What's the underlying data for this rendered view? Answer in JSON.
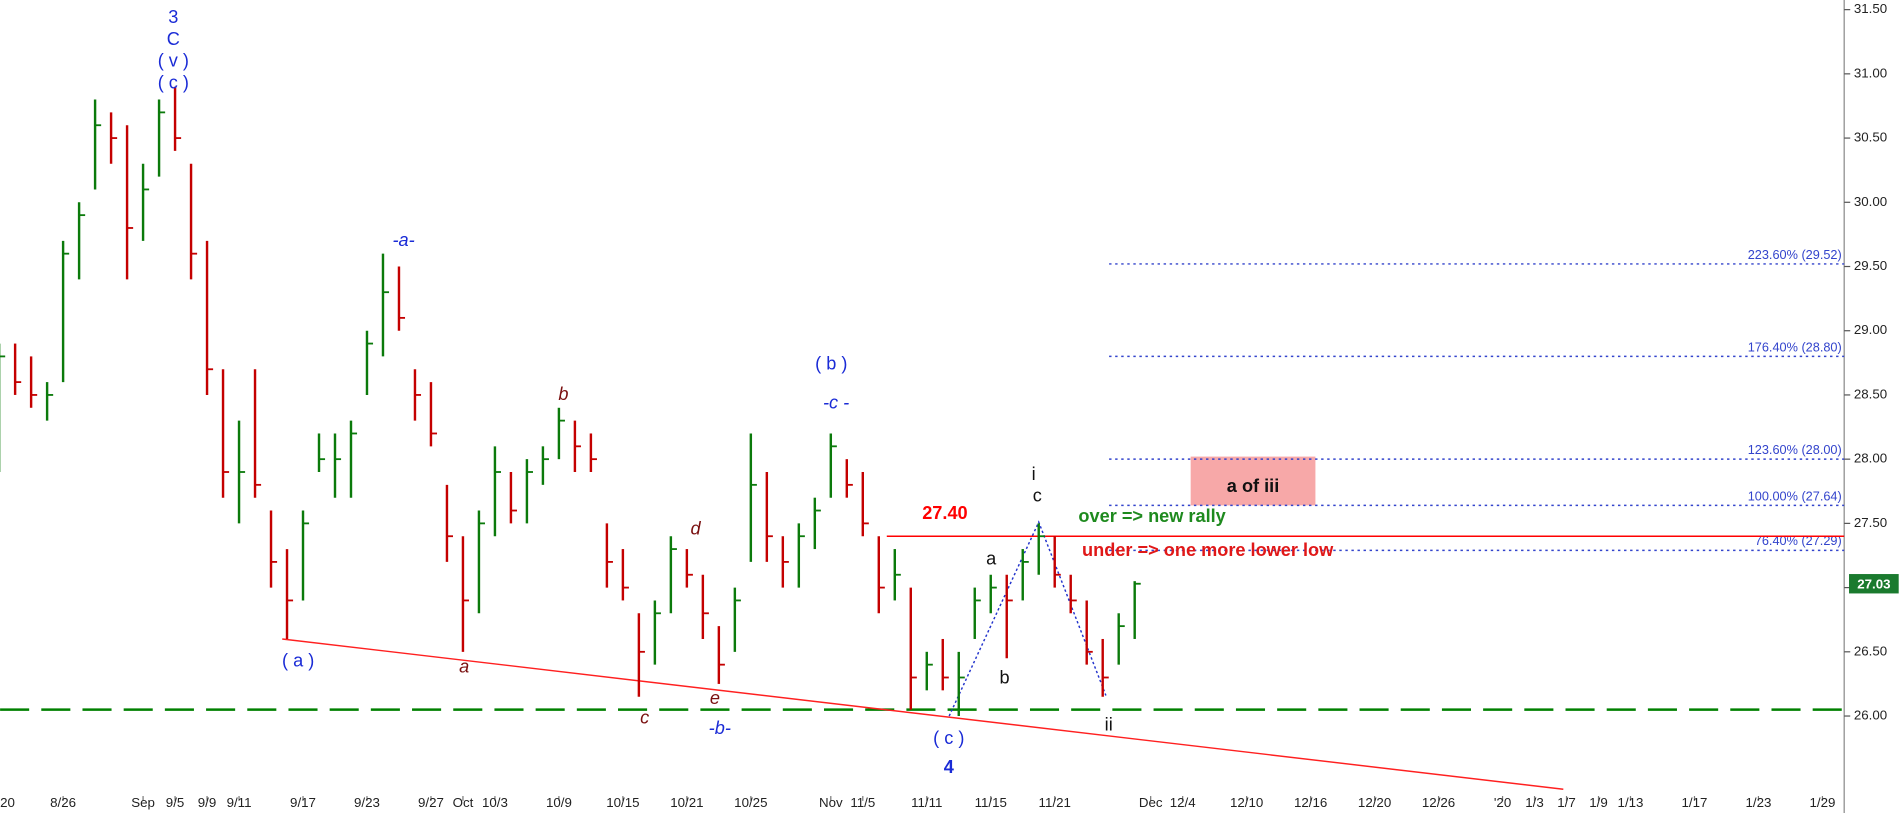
{
  "chart_data": {
    "type": "ohlc",
    "x": [
      0,
      1,
      2,
      3,
      4,
      5,
      6,
      7,
      8,
      9,
      10,
      11,
      12,
      13,
      14,
      15,
      16,
      17,
      18,
      19,
      20,
      21,
      22,
      23,
      24,
      25,
      26,
      27,
      28,
      29,
      30,
      31,
      32,
      33,
      34,
      35,
      36,
      37,
      38,
      39,
      40,
      41,
      42,
      43,
      44,
      45,
      46,
      47,
      48,
      49,
      50,
      51,
      52,
      53,
      54,
      55,
      56,
      57,
      58,
      59,
      60,
      61,
      62,
      63,
      64,
      65,
      66,
      67,
      68,
      69,
      70,
      71
    ],
    "high": [
      28.9,
      28.9,
      28.8,
      28.6,
      29.7,
      30.0,
      30.8,
      30.7,
      30.6,
      30.3,
      30.8,
      30.9,
      30.3,
      29.7,
      28.7,
      28.3,
      28.7,
      27.6,
      27.3,
      27.6,
      28.2,
      28.2,
      28.3,
      29.0,
      29.6,
      29.5,
      28.7,
      28.6,
      27.8,
      27.4,
      27.6,
      28.1,
      27.9,
      28.0,
      28.1,
      28.4,
      28.3,
      28.2,
      27.5,
      27.3,
      26.8,
      26.9,
      27.4,
      27.3,
      27.1,
      26.7,
      27.0,
      28.2,
      27.9,
      27.4,
      27.5,
      27.7,
      28.2,
      28.0,
      27.9,
      27.4,
      27.3,
      27.0,
      26.5,
      26.6,
      26.5,
      27.0,
      27.1,
      27.1,
      27.3,
      27.5,
      27.4,
      27.1,
      26.9,
      26.6,
      26.8,
      27.05
    ],
    "low": [
      27.9,
      28.5,
      28.4,
      28.3,
      28.6,
      29.4,
      30.1,
      30.3,
      29.4,
      29.7,
      30.2,
      30.4,
      29.4,
      28.5,
      27.7,
      27.5,
      27.7,
      27.0,
      26.6,
      26.9,
      27.9,
      27.7,
      27.7,
      28.5,
      28.8,
      29.0,
      28.3,
      28.1,
      27.2,
      26.5,
      26.8,
      27.4,
      27.5,
      27.5,
      27.8,
      28.0,
      27.9,
      27.9,
      27.0,
      26.9,
      26.15,
      26.4,
      26.8,
      27.0,
      26.6,
      26.25,
      26.5,
      27.2,
      27.2,
      27.0,
      27.0,
      27.3,
      27.7,
      27.7,
      27.4,
      26.8,
      26.9,
      26.05,
      26.2,
      26.2,
      26.0,
      26.6,
      26.8,
      26.45,
      26.9,
      27.1,
      27.0,
      26.8,
      26.4,
      26.15,
      26.4,
      26.6
    ],
    "close": [
      28.8,
      28.6,
      28.5,
      28.5,
      29.6,
      29.9,
      30.6,
      30.5,
      29.8,
      30.1,
      30.7,
      30.5,
      29.6,
      28.7,
      27.9,
      27.9,
      27.8,
      27.2,
      26.9,
      27.5,
      28.0,
      28.0,
      28.2,
      28.9,
      29.3,
      29.1,
      28.5,
      28.2,
      27.4,
      26.9,
      27.5,
      27.9,
      27.6,
      27.9,
      28.0,
      28.3,
      28.1,
      28.0,
      27.2,
      27.0,
      26.5,
      26.8,
      27.3,
      27.1,
      26.8,
      26.4,
      26.9,
      27.8,
      27.4,
      27.2,
      27.4,
      27.6,
      28.1,
      27.8,
      27.5,
      27.0,
      27.1,
      26.3,
      26.4,
      26.3,
      26.3,
      26.9,
      27.0,
      26.9,
      27.2,
      27.4,
      27.1,
      26.9,
      26.5,
      26.3,
      26.7,
      27.03
    ],
    "up_color": "#0b7a0b",
    "down_color": "#c40000",
    "last_price": 27.03,
    "last_price_color": "#1a7a2e",
    "xlim": [
      0.06,
      115.36
    ],
    "ylim": [
      25.245,
      31.575
    ],
    "xticks": [
      {
        "value": 0,
        "label": "20"
      },
      {
        "value": 4,
        "label": "8/26"
      },
      {
        "value": 9,
        "label": "Sep"
      },
      {
        "value": 11,
        "label": "9/5"
      },
      {
        "value": 13,
        "label": "9/9"
      },
      {
        "value": 15,
        "label": "9/11"
      },
      {
        "value": 19,
        "label": "9/17"
      },
      {
        "value": 23,
        "label": "9/23"
      },
      {
        "value": 27,
        "label": "9/27"
      },
      {
        "value": 29,
        "label": "Oct"
      },
      {
        "value": 31,
        "label": "10/3"
      },
      {
        "value": 35,
        "label": "10/9"
      },
      {
        "value": 39,
        "label": "10/15"
      },
      {
        "value": 43,
        "label": "10/21"
      },
      {
        "value": 47,
        "label": "10/25"
      },
      {
        "value": 52,
        "label": "Nov"
      },
      {
        "value": 54,
        "label": "11/5"
      },
      {
        "value": 58,
        "label": "11/11"
      },
      {
        "value": 62,
        "label": "11/15"
      },
      {
        "value": 66,
        "label": "11/21"
      },
      {
        "value": 72,
        "label": "Dec"
      },
      {
        "value": 74,
        "label": "12/4"
      },
      {
        "value": 78,
        "label": "12/10"
      },
      {
        "value": 82,
        "label": "12/16"
      },
      {
        "value": 86,
        "label": "12/20"
      },
      {
        "value": 90,
        "label": "12/26"
      },
      {
        "value": 94,
        "label": "'20"
      },
      {
        "value": 96,
        "label": "1/3"
      },
      {
        "value": 98,
        "label": "1/7"
      },
      {
        "value": 100,
        "label": "1/9"
      },
      {
        "value": 102,
        "label": "1/13"
      },
      {
        "value": 106,
        "label": "1/17"
      },
      {
        "value": 110,
        "label": "1/23"
      },
      {
        "value": 114,
        "label": "1/29"
      }
    ],
    "yticks": [
      {
        "value": 26,
        "label": "26.00"
      },
      {
        "value": 26.5,
        "label": "26.50"
      },
      {
        "value": 27,
        "label": "27.00"
      },
      {
        "value": 27.5,
        "label": "27.50"
      },
      {
        "value": 28,
        "label": "28.00"
      },
      {
        "value": 28.5,
        "label": "28.50"
      },
      {
        "value": 29,
        "label": "29.00"
      },
      {
        "value": 29.5,
        "label": "29.50"
      },
      {
        "value": 30,
        "label": "30.00"
      },
      {
        "value": 30.5,
        "label": "30.50"
      },
      {
        "value": 31,
        "label": "31.00"
      },
      {
        "value": 31.5,
        "label": "31.50"
      }
    ],
    "support_line": {
      "value": 26.05,
      "color": "#008000"
    },
    "trend_line": {
      "x": [
        17.7,
        97.8
      ],
      "y": [
        26.6,
        25.43
      ],
      "color": "#ff2020"
    },
    "reference_line": {
      "label": "27.40",
      "value": 27.4,
      "x_start": 55.5,
      "color": "#ff0000"
    },
    "fib_levels": {
      "color": "#3344cc",
      "x_start": 69.4,
      "levels": [
        {
          "label": "223.60% (29.52)",
          "value": 29.52
        },
        {
          "label": "176.40% (28.80)",
          "value": 28.8
        },
        {
          "label": "123.60% (28.00)",
          "value": 28.0
        },
        {
          "label": "100.00% (27.64)",
          "value": 27.64
        },
        {
          "label": "76.40% (27.29)",
          "value": 27.29
        }
      ]
    },
    "zone": {
      "label": "a of iii",
      "x": [
        74.5,
        82.3
      ],
      "y": [
        27.64,
        28.02
      ],
      "color": "#f7a8a8"
    },
    "wave_path": {
      "x": [
        59.4,
        65.0,
        69.2
      ],
      "y": [
        26.0,
        27.51,
        26.16
      ],
      "color": "#2233cc"
    },
    "wave_labels": [
      "3",
      "C",
      "( v )",
      "( c )",
      "-a-",
      "( a )",
      "a",
      "b",
      "c",
      "d",
      "e",
      "-b-",
      "( b )",
      "-c -",
      "( c )",
      "4",
      "i",
      "c",
      "a",
      "b",
      "ii"
    ],
    "notes": [
      "over => new rally",
      "under => one more lower low"
    ]
  }
}
